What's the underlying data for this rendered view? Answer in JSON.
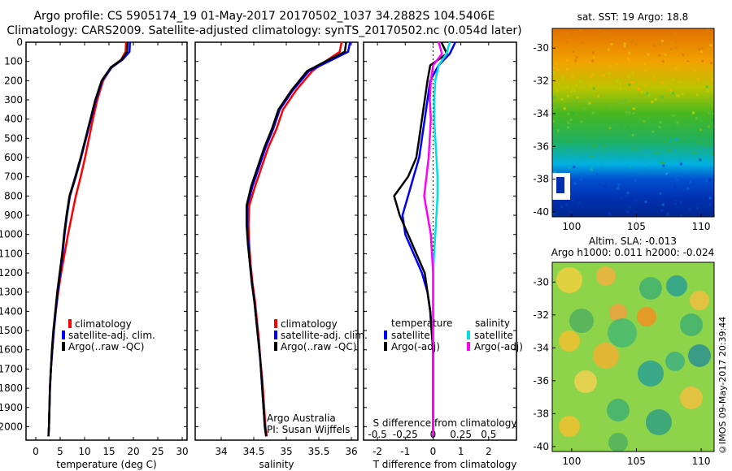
{
  "header": {
    "line1": "Argo profile: CS 5905174_19 01-May-2017 20170502_1037 34.2882S 104.5406E",
    "line2": "Climatology: CARS2009. Satellite-adjusted climatology: synTS_20170502.nc (0.054d later)"
  },
  "colors": {
    "climatology": "#ff0000",
    "satellite": "#0000ff",
    "argo": "#000000",
    "sat_salinity": "#00e0e0",
    "argo_salinity": "#ff00ff"
  },
  "panels": {
    "temperature": {
      "xlabel": "temperature (deg C)",
      "legend": [
        "climatology",
        "satellite-adj. clim.",
        "Argo(..raw -QC)"
      ]
    },
    "salinity": {
      "xlabel": "salinity",
      "legend": [
        "climatology",
        "satellite-adj. clim.",
        "Argo(..raw -QC)"
      ],
      "note1": "Argo Australia",
      "note2": "PI: Susan Wijffels"
    },
    "difference": {
      "xlabel": "T difference from climatology",
      "top_label": "S difference from climatology",
      "legend_temp_title": "temperature",
      "legend_sal_title": "salinity",
      "legend_temp": [
        "satellite",
        "Argo(-adj)"
      ],
      "legend_sal": [
        "satellite",
        "Argo(-adj)"
      ]
    },
    "sst_map": {
      "title": "sat. SST: 19 Argo: 18.8"
    },
    "sla_map": {
      "title1": "Altim. SLA: -0.013",
      "title2": "Argo h1000: 0.011 h2000: -0.024"
    }
  },
  "watermark": "©IMOS 09-May-2017 20:39:44",
  "chart_data": [
    {
      "type": "line",
      "title": "",
      "xlabel": "temperature (deg C)",
      "ylabel": "",
      "xlim": [
        -2,
        31
      ],
      "ylim": [
        2070,
        0
      ],
      "x_ticks": [
        0,
        5,
        10,
        15,
        20,
        25,
        30
      ],
      "y_ticks": [
        0,
        100,
        200,
        300,
        400,
        500,
        600,
        700,
        800,
        900,
        1000,
        1100,
        1200,
        1300,
        1400,
        1500,
        1600,
        1700,
        1800,
        1900,
        2000
      ],
      "series": [
        {
          "name": "climatology",
          "x": [
            18.5,
            18.4,
            17.5,
            15.5,
            13.8,
            12.6,
            11.7,
            10.9,
            10.1,
            9.2,
            8.2,
            7.4,
            6.6,
            5.9,
            5.2,
            4.6,
            4.1,
            3.7,
            3.4,
            3.1,
            2.9,
            2.8,
            2.7,
            2.6
          ],
          "y": [
            0,
            50,
            90,
            130,
            200,
            300,
            400,
            500,
            600,
            700,
            800,
            900,
            1000,
            1100,
            1200,
            1300,
            1400,
            1500,
            1600,
            1700,
            1800,
            1900,
            2000,
            2050
          ]
        },
        {
          "name": "satellite-adj. clim.",
          "x": [
            19.3,
            19.2,
            17.8,
            15.6,
            13.6,
            12.3,
            11.3,
            10.3,
            9.3,
            8.2,
            7.0,
            6.4,
            5.9,
            5.5,
            5.0,
            4.5,
            4.1,
            3.7,
            3.4,
            3.1,
            2.9,
            2.8,
            2.7,
            2.6
          ],
          "y": [
            0,
            50,
            90,
            130,
            200,
            300,
            400,
            500,
            600,
            700,
            800,
            900,
            1000,
            1100,
            1200,
            1300,
            1400,
            1500,
            1600,
            1700,
            1800,
            1900,
            2000,
            2050
          ]
        },
        {
          "name": "Argo(..raw -QC)",
          "x": [
            18.8,
            18.7,
            17.6,
            15.4,
            13.5,
            12.2,
            11.2,
            10.2,
            9.2,
            8.1,
            6.9,
            6.3,
            5.8,
            5.4,
            4.9,
            4.4,
            4.0,
            3.6,
            3.3,
            3.1,
            2.9,
            2.8,
            2.7,
            2.6
          ],
          "y": [
            0,
            50,
            90,
            130,
            200,
            300,
            400,
            500,
            600,
            700,
            800,
            900,
            1000,
            1100,
            1200,
            1300,
            1400,
            1500,
            1600,
            1700,
            1800,
            1900,
            2000,
            2050
          ]
        }
      ]
    },
    {
      "type": "line",
      "title": "",
      "xlabel": "salinity",
      "ylabel": "",
      "xlim": [
        33.6,
        36.1
      ],
      "ylim": [
        2070,
        0
      ],
      "x_ticks": [
        34,
        34.5,
        35,
        35.5,
        36
      ],
      "series": [
        {
          "name": "climatology",
          "x": [
            35.85,
            35.82,
            35.6,
            35.4,
            35.15,
            34.95,
            34.85,
            34.72,
            34.62,
            34.52,
            34.43,
            34.42,
            34.43,
            34.45,
            34.48,
            34.52,
            34.55,
            34.58,
            34.6,
            34.63,
            34.65,
            34.67,
            34.68,
            34.7
          ],
          "y": [
            0,
            50,
            100,
            150,
            250,
            350,
            450,
            550,
            650,
            750,
            850,
            950,
            1050,
            1150,
            1250,
            1350,
            1450,
            1550,
            1650,
            1750,
            1850,
            1950,
            2000,
            2050
          ]
        },
        {
          "name": "satellite-adj. clim.",
          "x": [
            35.98,
            35.95,
            35.65,
            35.35,
            35.1,
            34.9,
            34.8,
            34.68,
            34.58,
            34.48,
            34.4,
            34.4,
            34.42,
            34.44,
            34.47,
            34.51,
            34.54,
            34.57,
            34.6,
            34.62,
            34.64,
            34.66,
            34.67,
            34.69
          ],
          "y": [
            0,
            50,
            100,
            150,
            250,
            350,
            450,
            550,
            650,
            750,
            850,
            950,
            1050,
            1150,
            1250,
            1350,
            1450,
            1550,
            1650,
            1750,
            1850,
            1950,
            2000,
            2050
          ]
        },
        {
          "name": "Argo(..raw -QC)",
          "x": [
            35.92,
            35.9,
            35.6,
            35.32,
            35.08,
            34.88,
            34.78,
            34.66,
            34.56,
            34.46,
            34.39,
            34.39,
            34.41,
            34.44,
            34.47,
            34.51,
            34.54,
            34.57,
            34.6,
            34.62,
            34.64,
            34.66,
            34.67,
            34.69
          ],
          "y": [
            0,
            50,
            100,
            150,
            250,
            350,
            450,
            550,
            650,
            750,
            850,
            950,
            1050,
            1150,
            1250,
            1350,
            1450,
            1550,
            1650,
            1750,
            1850,
            1950,
            2000,
            2050
          ]
        }
      ]
    },
    {
      "type": "line",
      "title": "",
      "xlabel": "T difference from climatology",
      "ylabel": "",
      "xlim": [
        -2.5,
        3
      ],
      "ylim": [
        2070,
        0
      ],
      "x_ticks_T": [
        -2,
        -1,
        0,
        1,
        2
      ],
      "x_ticks_S": [
        -0.5,
        -0.25,
        0,
        0.25,
        0.5
      ],
      "series": [
        {
          "name": "temperature satellite",
          "x": [
            0.8,
            0.6,
            0.2,
            -0.1,
            -0.2,
            -0.3,
            -0.4,
            -0.5,
            -0.7,
            -0.9,
            -1.1,
            -1.0,
            -0.7,
            -0.4,
            -0.2,
            -0.1,
            -0.05,
            0,
            0,
            0,
            0,
            0,
            0
          ],
          "y": [
            0,
            60,
            120,
            200,
            300,
            400,
            500,
            600,
            700,
            800,
            900,
            1000,
            1100,
            1200,
            1300,
            1400,
            1500,
            1600,
            1700,
            1800,
            1900,
            2000,
            2050
          ]
        },
        {
          "name": "temperature Argo(-adj)",
          "x": [
            0.3,
            0.5,
            -0.1,
            -0.2,
            -0.3,
            -0.4,
            -0.5,
            -0.6,
            -0.9,
            -1.4,
            -1.2,
            -0.9,
            -0.6,
            -0.3,
            -0.2,
            -0.1,
            -0.05,
            0,
            0,
            0,
            0,
            0,
            0
          ],
          "y": [
            0,
            60,
            120,
            200,
            300,
            400,
            500,
            600,
            700,
            800,
            900,
            1000,
            1100,
            1200,
            1300,
            1400,
            1500,
            1600,
            1700,
            1800,
            1900,
            2000,
            2050
          ]
        },
        {
          "name": "salinity satellite",
          "x": [
            0.15,
            0.12,
            0.05,
            0.02,
            0.01,
            0.01,
            0.02,
            0.03,
            0.04,
            0.04,
            0.03,
            0.02,
            0.01,
            0.0,
            0.0,
            0.0,
            0.0,
            0.0,
            0.0,
            0.0,
            0.0,
            0.0,
            0.0
          ],
          "y": [
            0,
            60,
            120,
            200,
            300,
            400,
            500,
            600,
            700,
            800,
            900,
            1000,
            1100,
            1200,
            1300,
            1400,
            1500,
            1600,
            1700,
            1800,
            1900,
            2000,
            2050
          ]
        },
        {
          "name": "salinity Argo(-adj)",
          "x": [
            0.05,
            0.08,
            0.0,
            -0.02,
            -0.03,
            -0.02,
            -0.03,
            -0.04,
            -0.06,
            -0.08,
            -0.05,
            -0.02,
            -0.01,
            0.0,
            0.0,
            0.0,
            0.0,
            0.0,
            0.0,
            0.0,
            0.0,
            0.0,
            0.0
          ],
          "y": [
            0,
            60,
            120,
            200,
            300,
            400,
            500,
            600,
            700,
            800,
            900,
            1000,
            1100,
            1200,
            1300,
            1400,
            1500,
            1600,
            1700,
            1800,
            1900,
            2000,
            2050
          ]
        }
      ]
    },
    {
      "type": "heatmap",
      "title": "sat. SST: 19 Argo: 18.8",
      "xlim": [
        98.5,
        111
      ],
      "ylim": [
        -40.3,
        -28.8
      ],
      "x_ticks": [
        100,
        105,
        110
      ],
      "y_ticks": [
        -30,
        -32,
        -34,
        -36,
        -38,
        -40
      ]
    },
    {
      "type": "heatmap",
      "title": "Altim. SLA: -0.013 / Argo h1000: 0.011 h2000: -0.024",
      "xlim": [
        98.5,
        111
      ],
      "ylim": [
        -40.3,
        -28.8
      ],
      "x_ticks": [
        100,
        105,
        110
      ],
      "y_ticks": [
        -30,
        -32,
        -34,
        -36,
        -38,
        -40
      ]
    }
  ]
}
